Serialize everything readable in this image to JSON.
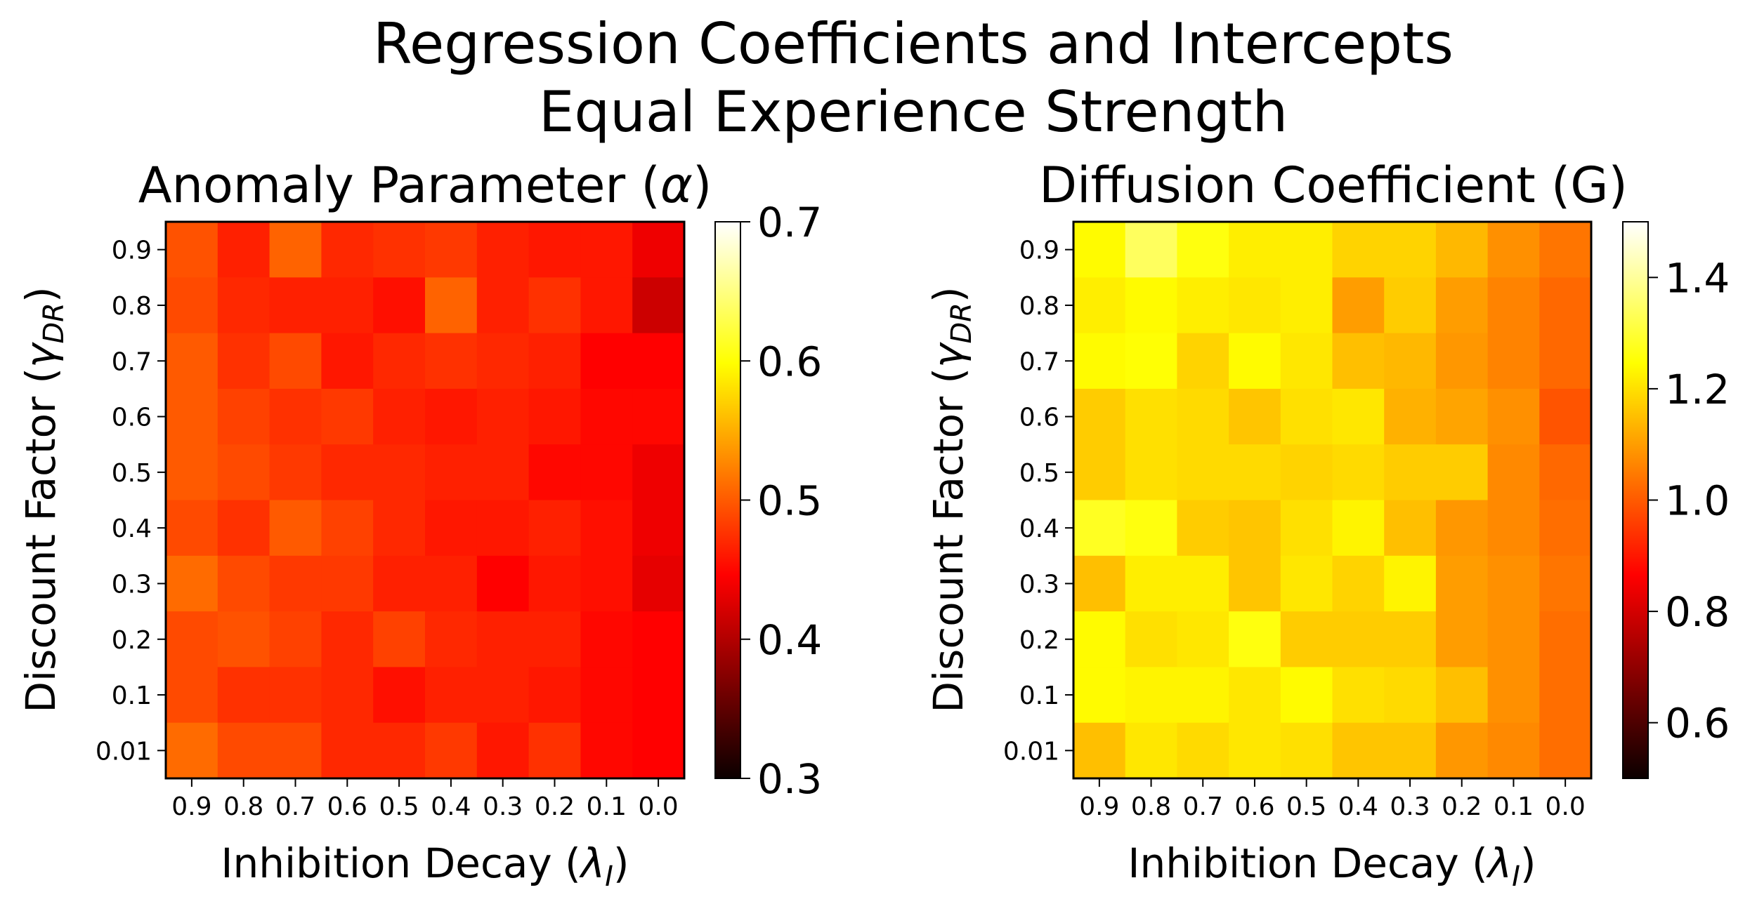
{
  "figure": {
    "title_line1": "Regression Coefficients and Intercepts",
    "title_line2": "Equal Experience Strength"
  },
  "chart_data": [
    {
      "type": "heatmap",
      "title": "Anomaly Parameter (α)",
      "xlabel": "Inhibition Decay (λ_I)",
      "ylabel": "Discount Factor (γ_DR)",
      "x_categories": [
        "0.9",
        "0.8",
        "0.7",
        "0.6",
        "0.5",
        "0.4",
        "0.3",
        "0.2",
        "0.1",
        "0.0"
      ],
      "y_categories": [
        "0.9",
        "0.8",
        "0.7",
        "0.6",
        "0.5",
        "0.4",
        "0.3",
        "0.2",
        "0.1",
        "0.01"
      ],
      "colormap": "hot",
      "vmin": 0.3,
      "vmax": 0.7,
      "colorbar_ticks": [
        "0.3",
        "0.4",
        "0.5",
        "0.6",
        "0.7"
      ],
      "values": [
        [
          0.495,
          0.465,
          0.505,
          0.47,
          0.475,
          0.48,
          0.465,
          0.46,
          0.46,
          0.42
        ],
        [
          0.49,
          0.47,
          0.465,
          0.465,
          0.455,
          0.505,
          0.465,
          0.475,
          0.46,
          0.4
        ],
        [
          0.5,
          0.475,
          0.49,
          0.46,
          0.47,
          0.475,
          0.47,
          0.465,
          0.445,
          0.43
        ],
        [
          0.5,
          0.485,
          0.475,
          0.48,
          0.465,
          0.46,
          0.465,
          0.46,
          0.45,
          0.45
        ],
        [
          0.5,
          0.49,
          0.48,
          0.47,
          0.47,
          0.465,
          0.465,
          0.45,
          0.45,
          0.42
        ],
        [
          0.49,
          0.475,
          0.5,
          0.485,
          0.47,
          0.46,
          0.46,
          0.465,
          0.455,
          0.42
        ],
        [
          0.51,
          0.49,
          0.48,
          0.48,
          0.465,
          0.465,
          0.44,
          0.46,
          0.455,
          0.415
        ],
        [
          0.49,
          0.495,
          0.485,
          0.47,
          0.485,
          0.47,
          0.465,
          0.465,
          0.45,
          0.435
        ],
        [
          0.49,
          0.475,
          0.475,
          0.47,
          0.455,
          0.465,
          0.465,
          0.46,
          0.45,
          0.435
        ],
        [
          0.51,
          0.49,
          0.49,
          0.47,
          0.47,
          0.48,
          0.46,
          0.475,
          0.45,
          0.44
        ]
      ]
    },
    {
      "type": "heatmap",
      "title": "Diffusion Coefficient (G)",
      "xlabel": "Inhibition Decay (λ_I)",
      "ylabel": "Discount Factor (γ_DR)",
      "x_categories": [
        "0.9",
        "0.8",
        "0.7",
        "0.6",
        "0.5",
        "0.4",
        "0.3",
        "0.2",
        "0.1",
        "0.0"
      ],
      "y_categories": [
        "0.9",
        "0.8",
        "0.7",
        "0.6",
        "0.5",
        "0.4",
        "0.3",
        "0.2",
        "0.1",
        "0.01"
      ],
      "colormap": "hot",
      "vmin": 0.5,
      "vmax": 1.5,
      "colorbar_ticks": [
        "0.6",
        "0.8",
        "1.0",
        "1.2",
        "1.4"
      ],
      "values": [
        [
          1.24,
          1.34,
          1.26,
          1.22,
          1.22,
          1.18,
          1.18,
          1.14,
          1.08,
          1.04
        ],
        [
          1.22,
          1.24,
          1.22,
          1.21,
          1.22,
          1.1,
          1.17,
          1.1,
          1.06,
          1.02
        ],
        [
          1.24,
          1.25,
          1.18,
          1.24,
          1.21,
          1.15,
          1.14,
          1.09,
          1.06,
          1.02
        ],
        [
          1.17,
          1.2,
          1.19,
          1.16,
          1.2,
          1.21,
          1.13,
          1.11,
          1.08,
          0.99
        ],
        [
          1.17,
          1.2,
          1.19,
          1.19,
          1.18,
          1.19,
          1.17,
          1.17,
          1.07,
          1.02
        ],
        [
          1.28,
          1.26,
          1.17,
          1.16,
          1.2,
          1.23,
          1.15,
          1.09,
          1.07,
          1.03
        ],
        [
          1.15,
          1.22,
          1.22,
          1.16,
          1.21,
          1.18,
          1.23,
          1.1,
          1.08,
          1.04
        ],
        [
          1.24,
          1.2,
          1.21,
          1.26,
          1.17,
          1.17,
          1.17,
          1.1,
          1.08,
          1.03
        ],
        [
          1.24,
          1.23,
          1.23,
          1.21,
          1.24,
          1.2,
          1.19,
          1.15,
          1.08,
          1.03
        ],
        [
          1.15,
          1.21,
          1.19,
          1.21,
          1.2,
          1.16,
          1.16,
          1.09,
          1.07,
          1.03
        ]
      ]
    }
  ]
}
